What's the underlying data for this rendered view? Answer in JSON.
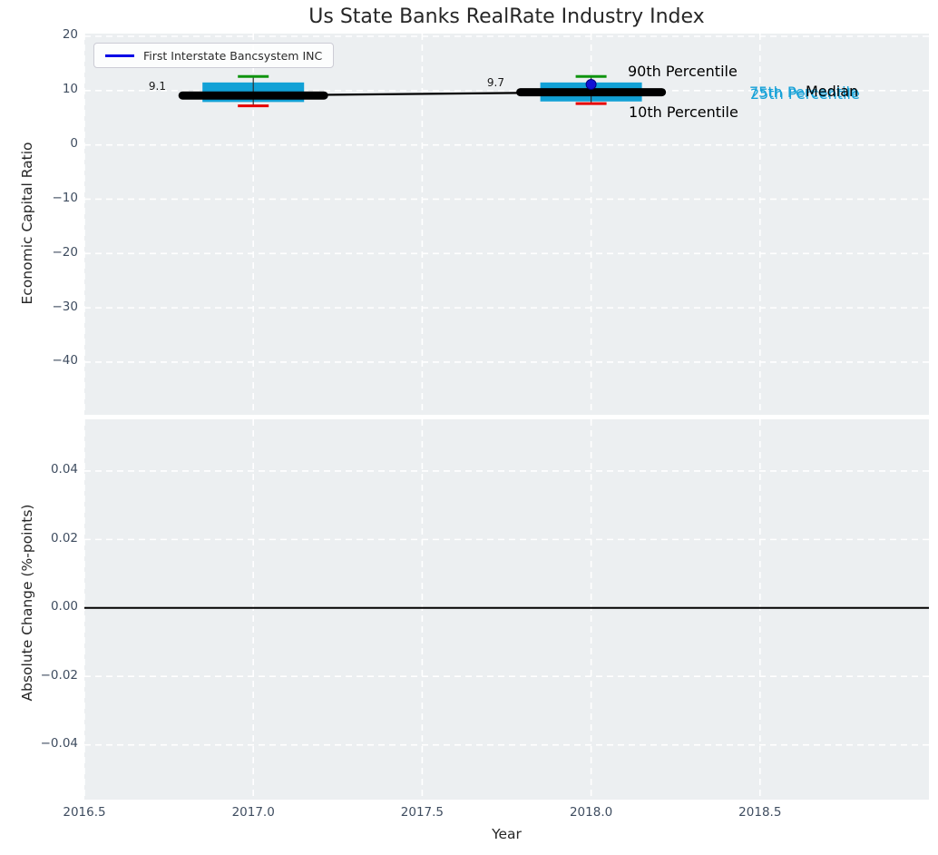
{
  "title": "Us State Banks RealRate Industry Index",
  "legend": {
    "label": "First Interstate Bancsystem INC"
  },
  "axes": {
    "top_ylabel": "Economic Capital Ratio",
    "bottom_ylabel": "Absolute Change (%-points)",
    "xlabel": "Year"
  },
  "annotations": {
    "p90": "90th Percentile",
    "p10": "10th Percentile",
    "p75": "75th Percentile",
    "p25": "25th Percentile",
    "median": "Median"
  },
  "colors": {
    "plot_bg": "#eceff1",
    "grid": "#ffffff",
    "box_fill": "#12a1d6",
    "p90_cap": "#0e940e",
    "p10_cap": "#e60000",
    "company_line": "#000000",
    "legend_line": "#0000e6",
    "marker_fill": "#1111d6",
    "marker_edge": "#000080",
    "annotation_cyan": "#18a2d8",
    "tick_label": "#3f4d60",
    "text": "#262626",
    "whisker": "#2f2f2f",
    "zero_line": "#000000"
  },
  "chart_data": [
    {
      "type": "boxplot",
      "title": "Us State Banks RealRate Industry Index",
      "ylabel": "Economic Capital Ratio",
      "legend_entries": [
        "First Interstate Bancsystem INC"
      ],
      "legend_position": "upper left",
      "grid": true,
      "xlim": [
        2016.5,
        2019.0
      ],
      "ylim": [
        -49.7,
        20.5
      ],
      "yticks": [
        20,
        10,
        0,
        -10,
        -20,
        -30,
        -40
      ],
      "ytick_labels": [
        "20",
        "10",
        "0",
        "−10",
        "−20",
        "−30",
        "−40"
      ],
      "xticks": [
        2016.5,
        2017.0,
        2017.5,
        2018.0,
        2018.5
      ],
      "company_series": {
        "name": "First Interstate Bancsystem INC",
        "x": [
          2017,
          2018
        ],
        "y": [
          9.1,
          9.7
        ]
      },
      "company_marker": {
        "x": 2018,
        "y": 11.15
      },
      "boxes": [
        {
          "x": 2017,
          "p10": 7.2,
          "p25": 7.9,
          "median": 9.1,
          "p75": 11.5,
          "p90": 12.6,
          "company": 9.1,
          "label": "9.1"
        },
        {
          "x": 2018,
          "p10": 7.6,
          "p25": 8.0,
          "median": 9.8,
          "p75": 11.5,
          "p90": 12.6,
          "company": 9.7,
          "label": "9.7"
        }
      ]
    },
    {
      "type": "line",
      "ylabel": "Absolute Change (%-points)",
      "xlabel": "Year",
      "grid": true,
      "xlim": [
        2016.5,
        2019.0
      ],
      "ylim": [
        -0.056,
        0.0551
      ],
      "yticks": [
        0.04,
        0.02,
        0.0,
        -0.02,
        -0.04
      ],
      "ytick_labels": [
        "0.04",
        "0.02",
        "0.00",
        "−0.02",
        "−0.04"
      ],
      "xticks": [
        2016.5,
        2017.0,
        2017.5,
        2018.0,
        2018.5
      ],
      "xtick_labels": [
        "2016.5",
        "2017.0",
        "2017.5",
        "2018.0",
        "2018.5"
      ],
      "zero_line": 0.0
    }
  ]
}
